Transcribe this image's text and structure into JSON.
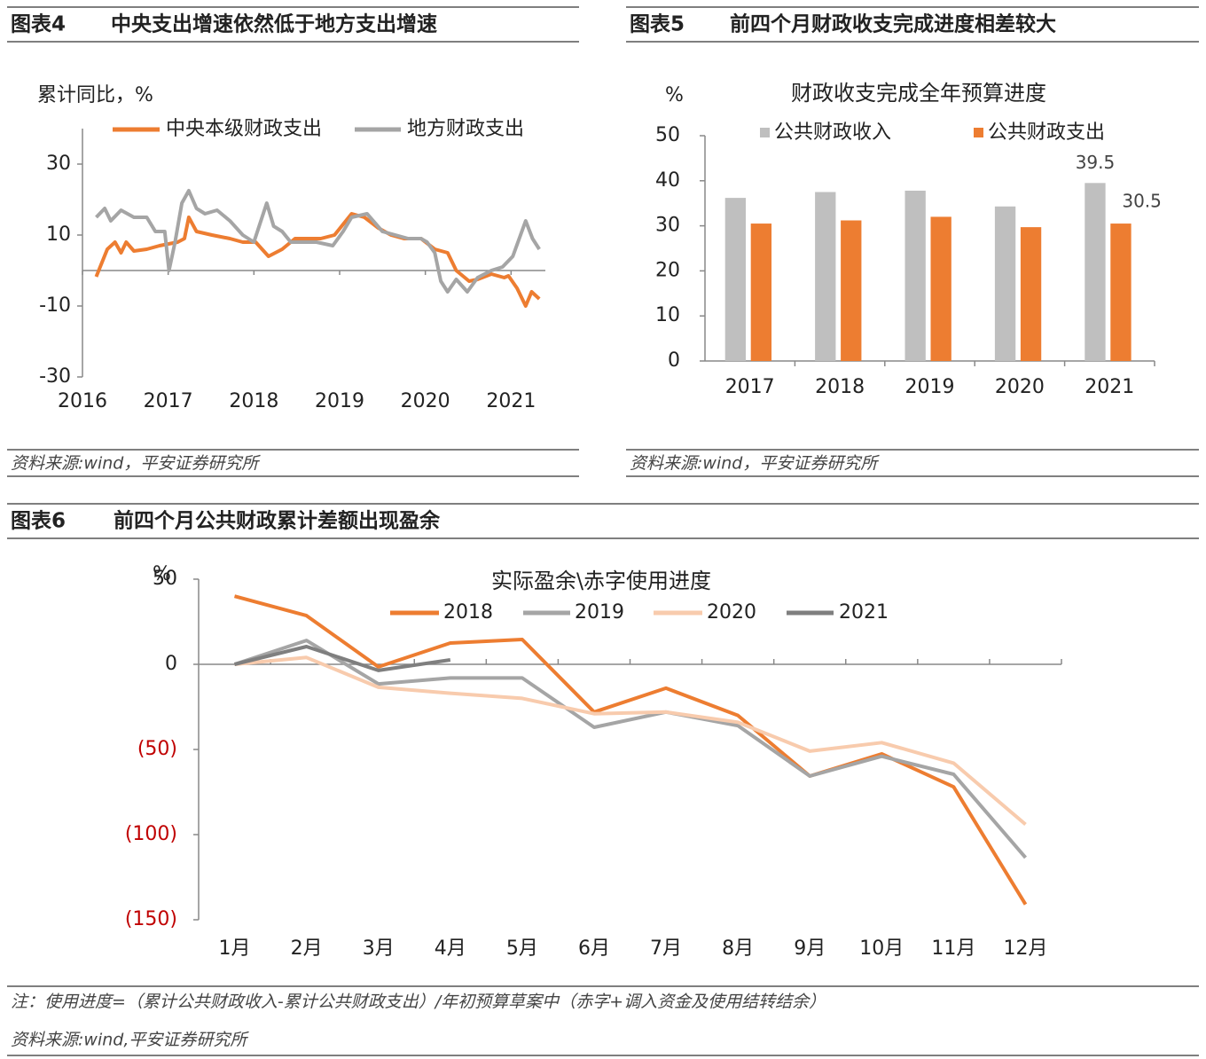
{
  "chart_data": [
    {
      "type": "line",
      "label": "图表4",
      "title": "中央支出增速依然低于地方支出增速",
      "y_label": "累计同比，%",
      "source": "资料来源:wind，平安证券研究所",
      "xlim": [
        2016,
        2021.4
      ],
      "xticks": [
        2016,
        2017,
        2018,
        2019,
        2020,
        2021
      ],
      "ylim": [
        -30,
        40
      ],
      "yticks": [
        30,
        10,
        -10,
        -30
      ],
      "series": [
        {
          "name": "中央本级财政支出",
          "color": "#ed7d31",
          "x": [
            2016.16,
            2016.29,
            2016.38,
            2016.45,
            2016.51,
            2016.6,
            2016.75,
            2016.9,
            2017.11,
            2017.19,
            2017.24,
            2017.33,
            2017.51,
            2017.72,
            2017.87,
            2018.02,
            2018.17,
            2018.33,
            2018.48,
            2018.63,
            2018.78,
            2018.94,
            2019.14,
            2019.29,
            2019.45,
            2019.6,
            2019.75,
            2019.95,
            2020.11,
            2020.26,
            2020.36,
            2020.51,
            2020.61,
            2020.77,
            2020.92,
            2020.97,
            2021.07,
            2021.17,
            2021.24,
            2021.33
          ],
          "values": [
            -1.75,
            6,
            8,
            5,
            8,
            5.5,
            6,
            7,
            8,
            9,
            15,
            11,
            10,
            9,
            8,
            8,
            4,
            6,
            9,
            9,
            9,
            10,
            16,
            15,
            12,
            10,
            9,
            9,
            6,
            5,
            0,
            -3,
            -2.5,
            -1,
            -2,
            -1.5,
            -5,
            -10,
            -6,
            -8
          ]
        },
        {
          "name": "地方财政支出",
          "color": "#a5a5a5",
          "x": [
            2016.16,
            2016.26,
            2016.33,
            2016.45,
            2016.6,
            2016.75,
            2016.85,
            2016.96,
            2017.01,
            2017.08,
            2017.16,
            2017.24,
            2017.33,
            2017.43,
            2017.57,
            2017.72,
            2017.87,
            2018.0,
            2018.15,
            2018.23,
            2018.33,
            2018.43,
            2018.58,
            2018.73,
            2018.92,
            2019.04,
            2019.14,
            2019.32,
            2019.5,
            2019.65,
            2019.8,
            2019.95,
            2020.02,
            2020.11,
            2020.18,
            2020.26,
            2020.36,
            2020.49,
            2020.61,
            2020.77,
            2020.9,
            2021.02,
            2021.17,
            2021.25,
            2021.33
          ],
          "values": [
            15,
            17.5,
            14,
            17,
            15,
            15,
            11,
            11,
            0,
            8,
            19,
            22.5,
            17.5,
            16,
            17,
            14,
            10,
            8,
            19,
            12.5,
            11,
            8,
            8,
            8,
            7,
            11,
            15,
            16,
            11,
            10,
            9,
            9,
            8,
            5,
            -3,
            -6,
            -2.5,
            -6,
            -2,
            0,
            1,
            4,
            14,
            9,
            6
          ]
        }
      ]
    },
    {
      "type": "bar",
      "label": "图表5",
      "title": "前四个月财政收支完成进度相差较大",
      "chart_title": "财政收支完成全年预算进度",
      "y_label": "%",
      "source": "资料来源:wind，平安证券研究所",
      "categories": [
        "2017",
        "2018",
        "2019",
        "2020",
        "2021"
      ],
      "ylim": [
        0,
        50
      ],
      "yticks": [
        0,
        10,
        20,
        30,
        40,
        50
      ],
      "series": [
        {
          "name": "公共财政收入",
          "color": "#bfbfbf",
          "values": [
            36.2,
            37.5,
            37.8,
            34.3,
            39.5
          ]
        },
        {
          "name": "公共财政支出",
          "color": "#ed7d31",
          "values": [
            30.5,
            31.2,
            32.0,
            29.7,
            30.5
          ]
        }
      ]
    },
    {
      "type": "line",
      "label": "图表6",
      "title": "前四个月公共财政累计差额出现盈余",
      "chart_title": "实际盈余\\赤字使用进度",
      "y_label": "%",
      "note": "注：使用进度=（累计公共财政收入-累计公共财政支出）/年初预算草案中（赤字+调入资金及使用结转结余）",
      "source": "资料来源:wind,平安证券研究所",
      "categories": [
        "1月",
        "2月",
        "3月",
        "4月",
        "5月",
        "6月",
        "7月",
        "8月",
        "9月",
        "10月",
        "11月",
        "12月"
      ],
      "ylim": [
        -150,
        50
      ],
      "yticks": [
        50,
        0,
        {
          "value": -50,
          "label": "(50)"
        },
        {
          "value": -100,
          "label": "(100)"
        },
        {
          "value": -150,
          "label": "(150)"
        }
      ],
      "negative_tick_color": "#c00000",
      "series": [
        {
          "name": "2018",
          "color": "#ed7d31",
          "values": [
            40,
            28.6,
            -1.5,
            12.5,
            14.6,
            -28,
            -14,
            -30,
            -65.6,
            -52.6,
            -72,
            -141
          ]
        },
        {
          "name": "2019",
          "color": "#a5a5a5",
          "values": [
            0,
            14,
            -11.5,
            -8,
            -8,
            -37,
            -28,
            -36,
            -65.6,
            -54,
            -64.6,
            -113.5
          ]
        },
        {
          "name": "2020",
          "color": "#f8cbad",
          "values": [
            0,
            4,
            -13.5,
            -17,
            -20,
            -29,
            -28,
            -34,
            -51,
            -46,
            -58,
            -94
          ]
        },
        {
          "name": "2021",
          "color": "#7f7f7f",
          "values": [
            0,
            10.4,
            -3.6,
            2.6,
            null,
            null,
            null,
            null,
            null,
            null,
            null,
            null
          ]
        }
      ]
    }
  ]
}
